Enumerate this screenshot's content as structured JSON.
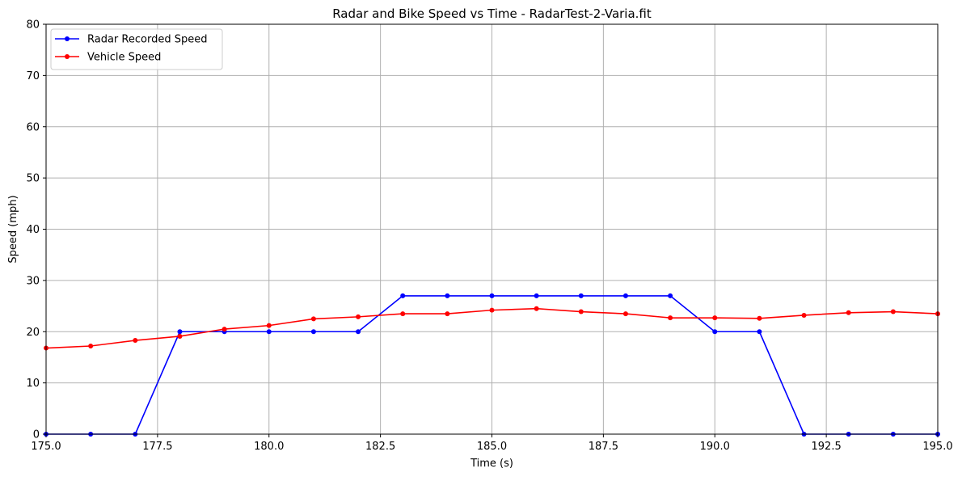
{
  "chart_data": {
    "type": "line",
    "title": "Radar and Bike Speed vs Time - RadarTest-2-Varia.fit",
    "xlabel": "Time (s)",
    "ylabel": "Speed (mph)",
    "xlim": [
      175.0,
      195.0
    ],
    "ylim": [
      0,
      80
    ],
    "xticks": [
      175.0,
      177.5,
      180.0,
      182.5,
      185.0,
      187.5,
      190.0,
      192.5,
      195.0
    ],
    "xtick_labels": [
      "175.0",
      "177.5",
      "180.0",
      "182.5",
      "185.0",
      "187.5",
      "190.0",
      "192.5",
      "195.0"
    ],
    "yticks": [
      0,
      10,
      20,
      30,
      40,
      50,
      60,
      70,
      80
    ],
    "ytick_labels": [
      "0",
      "10",
      "20",
      "30",
      "40",
      "50",
      "60",
      "70",
      "80"
    ],
    "grid": true,
    "legend_position": "top-left",
    "x": [
      175,
      176,
      177,
      178,
      179,
      180,
      181,
      182,
      183,
      184,
      185,
      186,
      187,
      188,
      189,
      190,
      191,
      192,
      193,
      194,
      195
    ],
    "series": [
      {
        "name": "Radar Recorded Speed",
        "color": "#0000ff",
        "marker": "circle",
        "values": [
          0,
          0,
          0,
          20,
          20,
          20,
          20,
          20,
          27,
          27,
          27,
          27,
          27,
          27,
          27,
          20,
          20,
          0,
          0,
          0,
          0
        ]
      },
      {
        "name": "Vehicle Speed",
        "color": "#ff0000",
        "marker": "circle",
        "values": [
          16.8,
          17.2,
          18.3,
          19.1,
          20.5,
          21.2,
          22.5,
          22.9,
          23.5,
          23.5,
          24.2,
          24.5,
          23.9,
          23.5,
          22.7,
          22.7,
          22.6,
          23.2,
          23.7,
          23.9,
          23.5
        ]
      }
    ]
  }
}
